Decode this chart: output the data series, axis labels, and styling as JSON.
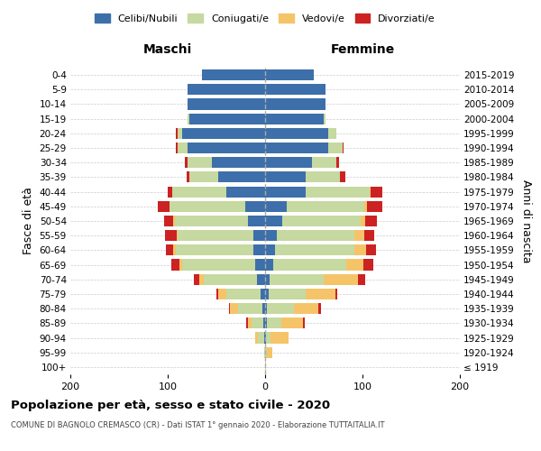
{
  "age_groups": [
    "100+",
    "95-99",
    "90-94",
    "85-89",
    "80-84",
    "75-79",
    "70-74",
    "65-69",
    "60-64",
    "55-59",
    "50-54",
    "45-49",
    "40-44",
    "35-39",
    "30-34",
    "25-29",
    "20-24",
    "15-19",
    "10-14",
    "5-9",
    "0-4"
  ],
  "birth_years": [
    "≤ 1919",
    "1920-1924",
    "1925-1929",
    "1930-1934",
    "1935-1939",
    "1940-1944",
    "1945-1949",
    "1950-1954",
    "1955-1959",
    "1960-1964",
    "1965-1969",
    "1970-1974",
    "1975-1979",
    "1980-1984",
    "1985-1989",
    "1990-1994",
    "1995-1999",
    "2000-2004",
    "2005-2009",
    "2010-2014",
    "2015-2019"
  ],
  "male": {
    "celibi": [
      0,
      0,
      1,
      2,
      3,
      5,
      8,
      10,
      12,
      12,
      18,
      20,
      40,
      48,
      55,
      80,
      85,
      78,
      80,
      80,
      65
    ],
    "coniugati": [
      0,
      1,
      6,
      12,
      25,
      35,
      55,
      75,
      80,
      78,
      75,
      78,
      55,
      30,
      25,
      10,
      5,
      2,
      0,
      0,
      0
    ],
    "vedovi": [
      0,
      0,
      3,
      4,
      8,
      8,
      5,
      3,
      2,
      1,
      1,
      0,
      0,
      0,
      0,
      0,
      0,
      0,
      0,
      0,
      0
    ],
    "divorziati": [
      0,
      0,
      0,
      1,
      1,
      2,
      5,
      8,
      8,
      12,
      10,
      12,
      5,
      3,
      2,
      2,
      2,
      0,
      0,
      0,
      0
    ]
  },
  "female": {
    "nubili": [
      0,
      0,
      1,
      2,
      2,
      4,
      5,
      8,
      10,
      12,
      18,
      22,
      42,
      42,
      48,
      65,
      65,
      60,
      62,
      62,
      50
    ],
    "coniugate": [
      0,
      2,
      5,
      15,
      28,
      38,
      55,
      75,
      82,
      80,
      80,
      80,
      65,
      35,
      25,
      15,
      8,
      2,
      0,
      0,
      0
    ],
    "vedove": [
      1,
      5,
      18,
      22,
      25,
      30,
      35,
      18,
      12,
      10,
      5,
      3,
      1,
      0,
      0,
      0,
      0,
      0,
      0,
      0,
      0
    ],
    "divorziate": [
      0,
      0,
      0,
      2,
      2,
      2,
      8,
      10,
      10,
      10,
      12,
      15,
      12,
      5,
      3,
      1,
      0,
      0,
      0,
      0,
      0
    ]
  },
  "colors": {
    "celibi": "#3d6faa",
    "coniugati": "#c5d9a0",
    "vedovi": "#f5c469",
    "divorziati": "#cc2222"
  },
  "xlim": [
    -200,
    200
  ],
  "xlabel_ticks": [
    -200,
    -100,
    0,
    100,
    200
  ],
  "xlabel_labels": [
    "200",
    "100",
    "0",
    "100",
    "200"
  ],
  "title": "Popolazione per età, sesso e stato civile - 2020",
  "subtitle": "COMUNE DI BAGNOLO CREMASCO (CR) - Dati ISTAT 1° gennaio 2020 - Elaborazione TUTTAITALIA.IT",
  "ylabel_left": "Fasce di età",
  "ylabel_right": "Anni di nascita",
  "label_maschi": "Maschi",
  "label_femmine": "Femmine",
  "legend_labels": [
    "Celibi/Nubili",
    "Coniugati/e",
    "Vedovi/e",
    "Divorziati/e"
  ],
  "bg_color": "#ffffff",
  "grid_color": "#cccccc"
}
